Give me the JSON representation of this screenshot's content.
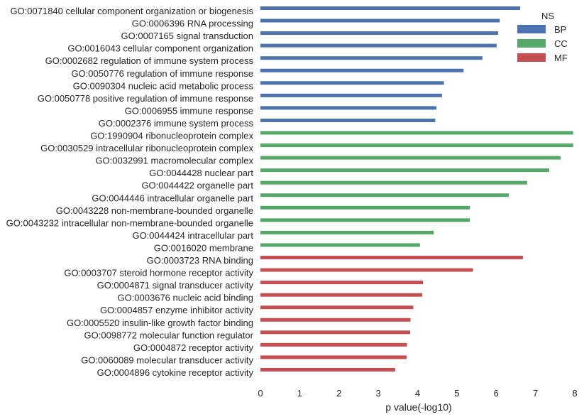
{
  "chart_data": {
    "type": "bar",
    "orientation": "horizontal",
    "xlabel": "p value(-log10)",
    "ylabel": "",
    "xlim": [
      0,
      8
    ],
    "xticks": [
      0,
      1,
      2,
      3,
      4,
      5,
      6,
      7,
      8
    ],
    "grid": false,
    "legend": {
      "title": "NS",
      "position": "top-right",
      "entries": [
        {
          "name": "BP",
          "color": "#4c72b0"
        },
        {
          "name": "CC",
          "color": "#55a868"
        },
        {
          "name": "MF",
          "color": "#c44e52"
        }
      ]
    },
    "categories": [
      "GO:0071840 cellular component organization or biogenesis",
      "GO:0006396 RNA processing",
      "GO:0007165 signal transduction",
      "GO:0016043 cellular component organization",
      "GO:0002682 regulation of immune system process",
      "GO:0050776 regulation of immune response",
      "GO:0090304 nucleic acid metabolic process",
      "GO:0050778 positive regulation of immune response",
      "GO:0006955 immune response",
      "GO:0002376 immune system process",
      "GO:1990904 ribonucleoprotein complex",
      "GO:0030529 intracellular ribonucleoprotein complex",
      "GO:0032991 macromolecular complex",
      "GO:0044428 nuclear part",
      "GO:0044422 organelle part",
      "GO:0044446 intracellular organelle part",
      "GO:0043228 non-membrane-bounded organelle",
      "GO:0043232 intracellular non-membrane-bounded organelle",
      "GO:0044424 intracellular part",
      "GO:0016020 membrane",
      "GO:0003723 RNA binding",
      "GO:0003707 steroid hormone receptor activity",
      "GO:0004871 signal transducer activity",
      "GO:0003676 nucleic acid binding",
      "GO:0004857 enzyme inhibitor activity",
      "GO:0005520 insulin-like growth factor binding",
      "GO:0098772 molecular function regulator",
      "GO:0004872 receptor activity",
      "GO:0060089 molecular transducer activity",
      "GO:0004896 cytokine receptor activity"
    ],
    "series": [
      {
        "name": "BP",
        "color": "#4c72b0",
        "values": [
          6.61,
          6.09,
          6.05,
          6.01,
          5.65,
          5.17,
          4.67,
          4.62,
          4.48,
          4.45,
          null,
          null,
          null,
          null,
          null,
          null,
          null,
          null,
          null,
          null,
          null,
          null,
          null,
          null,
          null,
          null,
          null,
          null,
          null,
          null
        ]
      },
      {
        "name": "CC",
        "color": "#55a868",
        "values": [
          null,
          null,
          null,
          null,
          null,
          null,
          null,
          null,
          null,
          null,
          7.96,
          7.96,
          7.64,
          7.35,
          6.79,
          6.32,
          5.33,
          5.33,
          4.41,
          4.06,
          null,
          null,
          null,
          null,
          null,
          null,
          null,
          null,
          null,
          null
        ]
      },
      {
        "name": "MF",
        "color": "#c44e52",
        "values": [
          null,
          null,
          null,
          null,
          null,
          null,
          null,
          null,
          null,
          null,
          null,
          null,
          null,
          null,
          null,
          null,
          null,
          null,
          null,
          null,
          6.68,
          5.41,
          4.14,
          4.12,
          3.89,
          3.82,
          3.81,
          3.73,
          3.72,
          3.43
        ]
      }
    ]
  }
}
